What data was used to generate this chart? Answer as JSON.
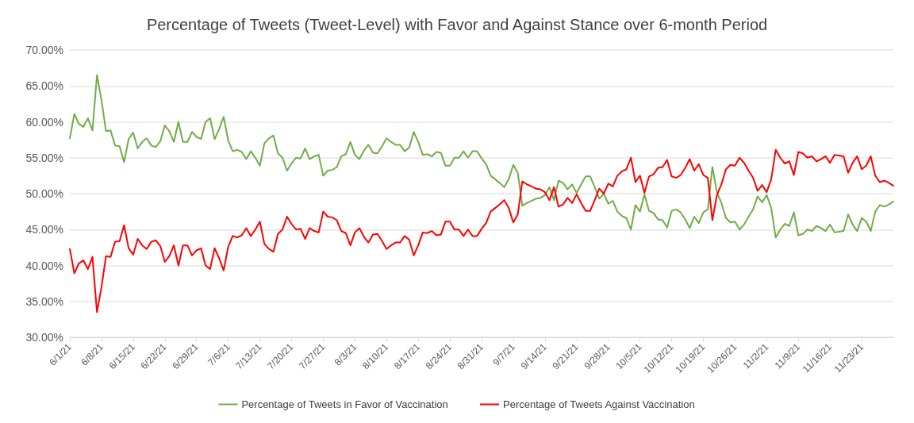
{
  "chart_data": {
    "type": "line",
    "title": "Percentage of Tweets (Tweet-Level) with Favor and Against Stance over 6-month Period",
    "categories": [
      "6/1/21",
      null,
      null,
      null,
      null,
      null,
      null,
      "6/8/21",
      null,
      null,
      null,
      null,
      null,
      null,
      "6/15/21",
      null,
      null,
      null,
      null,
      null,
      null,
      "6/22/21",
      null,
      null,
      null,
      null,
      null,
      null,
      "6/29/21",
      null,
      null,
      null,
      null,
      null,
      null,
      "7/6/21",
      null,
      null,
      null,
      null,
      null,
      null,
      "7/13/21",
      null,
      null,
      null,
      null,
      null,
      null,
      "7/20/21",
      null,
      null,
      null,
      null,
      null,
      null,
      "7/27/21",
      null,
      null,
      null,
      null,
      null,
      null,
      "8/3/21",
      null,
      null,
      null,
      null,
      null,
      null,
      "8/10/21",
      null,
      null,
      null,
      null,
      null,
      null,
      "8/17/21",
      null,
      null,
      null,
      null,
      null,
      null,
      "8/24/21",
      null,
      null,
      null,
      null,
      null,
      null,
      "8/31/21",
      null,
      null,
      null,
      null,
      null,
      null,
      "9/7/21",
      null,
      null,
      null,
      null,
      null,
      null,
      "9/14/21",
      null,
      null,
      null,
      null,
      null,
      null,
      "9/21/21",
      null,
      null,
      null,
      null,
      null,
      null,
      "9/28/21",
      null,
      null,
      null,
      null,
      null,
      null,
      "10/5/21",
      null,
      null,
      null,
      null,
      null,
      null,
      "10/12/21",
      null,
      null,
      null,
      null,
      null,
      null,
      "10/19/21",
      null,
      null,
      null,
      null,
      null,
      null,
      "10/26/21",
      null,
      null,
      null,
      null,
      null,
      null,
      "11/2/21",
      null,
      null,
      null,
      null,
      null,
      null,
      "11/9/21",
      null,
      null,
      null,
      null,
      null,
      null,
      "11/16/21",
      null,
      null,
      null,
      null,
      null,
      null,
      "11/23/21",
      null,
      null,
      null,
      null,
      null,
      null,
      null
    ],
    "series": [
      {
        "name": "Percentage of Tweets in Favor of Vaccination",
        "color": "#70ad47",
        "values": [
          57.7,
          61.1,
          59.7,
          59.3,
          60.5,
          58.8,
          66.5,
          63,
          58.7,
          58.8,
          56.7,
          56.6,
          54.4,
          57.6,
          58.5,
          56.3,
          57.2,
          57.7,
          56.7,
          56.5,
          57.3,
          59.5,
          58.7,
          57.2,
          60,
          57.2,
          57.2,
          58.6,
          57.9,
          57.6,
          60,
          60.5,
          57.6,
          59,
          60.7,
          57.4,
          55.9,
          56.1,
          55.8,
          54.8,
          55.9,
          55,
          53.9,
          57,
          57.7,
          58.1,
          55.6,
          55,
          53.2,
          54.2,
          55,
          54.9,
          56.3,
          54.8,
          55.2,
          55.4,
          52.5,
          53.2,
          53.3,
          53.7,
          55.2,
          55.5,
          57.2,
          55.4,
          54.8,
          56,
          56.8,
          55.7,
          55.6,
          56.6,
          57.7,
          57.2,
          56.8,
          56.8,
          55.9,
          56.4,
          58.6,
          57.2,
          55.4,
          55.5,
          55.2,
          55.8,
          55.7,
          53.9,
          53.9,
          55,
          55,
          55.9,
          55,
          55.9,
          55.9,
          54.9,
          54.1,
          52.5,
          52,
          51.5,
          50.9,
          52,
          54,
          52.9,
          48.3,
          48.7,
          49,
          49.3,
          49.4,
          49.8,
          50.9,
          49.1,
          51.8,
          51.5,
          50.6,
          51.3,
          50.1,
          51.3,
          52.4,
          52.4,
          50.9,
          49.3,
          50,
          48.6,
          49,
          47.5,
          46.9,
          46.6,
          45,
          48.4,
          47.5,
          49.9,
          47.6,
          47.3,
          46.4,
          46.3,
          45.3,
          47.6,
          47.8,
          47.4,
          46.4,
          45.2,
          46.8,
          45.9,
          47.4,
          47.8,
          53.7,
          50.2,
          48.7,
          46.6,
          46,
          46.1,
          45,
          45.7,
          46.8,
          47.8,
          49.6,
          48.8,
          49.8,
          48,
          43.9,
          45,
          45.8,
          45.5,
          47.4,
          44.2,
          44.4,
          45,
          44.8,
          45.5,
          45.2,
          44.8,
          45.7,
          44.6,
          44.7,
          44.8,
          47.1,
          45.7,
          44.8,
          46.6,
          46.1,
          44.8,
          47.5,
          48.4,
          48.2,
          48.5,
          48.9
        ]
      },
      {
        "name": "Percentage of Tweets Against Vaccination",
        "color": "#ff0000",
        "values": [
          42.3,
          38.9,
          40.3,
          40.7,
          39.5,
          41.2,
          33.5,
          37,
          41.3,
          41.2,
          43.3,
          43.4,
          45.6,
          42.4,
          41.5,
          43.7,
          42.8,
          42.3,
          43.3,
          43.5,
          42.7,
          40.5,
          41.3,
          42.8,
          40,
          42.8,
          42.8,
          41.4,
          42.1,
          42.4,
          40,
          39.5,
          42.4,
          41,
          39.3,
          42.6,
          44.1,
          43.9,
          44.2,
          45.2,
          44.1,
          45,
          46.1,
          43,
          42.3,
          41.9,
          44.4,
          45,
          46.8,
          45.8,
          45,
          45.1,
          43.7,
          45.2,
          44.8,
          44.6,
          47.5,
          46.8,
          46.7,
          46.3,
          44.8,
          44.5,
          42.8,
          44.6,
          45.2,
          44,
          43.2,
          44.3,
          44.4,
          43.4,
          42.3,
          42.8,
          43.2,
          43.2,
          44.1,
          43.6,
          41.4,
          42.8,
          44.6,
          44.5,
          44.8,
          44.2,
          44.3,
          46.1,
          46.1,
          45,
          45,
          44.1,
          45,
          44.1,
          44.1,
          45.1,
          45.9,
          47.5,
          48,
          48.5,
          49.1,
          48,
          46,
          47.1,
          51.7,
          51.3,
          51,
          50.7,
          50.6,
          50.2,
          49.1,
          50.9,
          48.2,
          48.5,
          49.4,
          48.7,
          49.9,
          48.7,
          47.6,
          47.6,
          49.1,
          50.7,
          50,
          51.4,
          51,
          52.5,
          53.1,
          53.4,
          55,
          51.6,
          52.5,
          50.1,
          52.4,
          52.7,
          53.6,
          53.7,
          54.7,
          52.4,
          52.2,
          52.6,
          53.6,
          54.8,
          53.2,
          54.1,
          52.6,
          52.2,
          46.3,
          49.8,
          51.3,
          53.4,
          54,
          53.9,
          55,
          54.3,
          53.2,
          52.2,
          50.4,
          51.2,
          50.2,
          52,
          56.1,
          55,
          54.2,
          54.5,
          52.6,
          55.8,
          55.6,
          55,
          55.2,
          54.5,
          54.8,
          55.2,
          54.3,
          55.4,
          55.3,
          55.2,
          52.9,
          54.3,
          55.2,
          53.4,
          53.9,
          55.2,
          52.5,
          51.6,
          51.8,
          51.5,
          51.1
        ]
      }
    ],
    "ylim": [
      30,
      70
    ],
    "yticks": [
      {
        "value": 30,
        "label": "30.00%"
      },
      {
        "value": 35,
        "label": "35.00%"
      },
      {
        "value": 40,
        "label": "40.00%"
      },
      {
        "value": 45,
        "label": "45.00%"
      },
      {
        "value": 50,
        "label": "50.00%"
      },
      {
        "value": 55,
        "label": "55.00%"
      },
      {
        "value": 60,
        "label": "60.00%"
      },
      {
        "value": 65,
        "label": "65.00%"
      },
      {
        "value": 70,
        "label": "70.00%"
      }
    ],
    "grid": "y",
    "legend": "bottom",
    "marker": "none",
    "line_style": "solid"
  }
}
